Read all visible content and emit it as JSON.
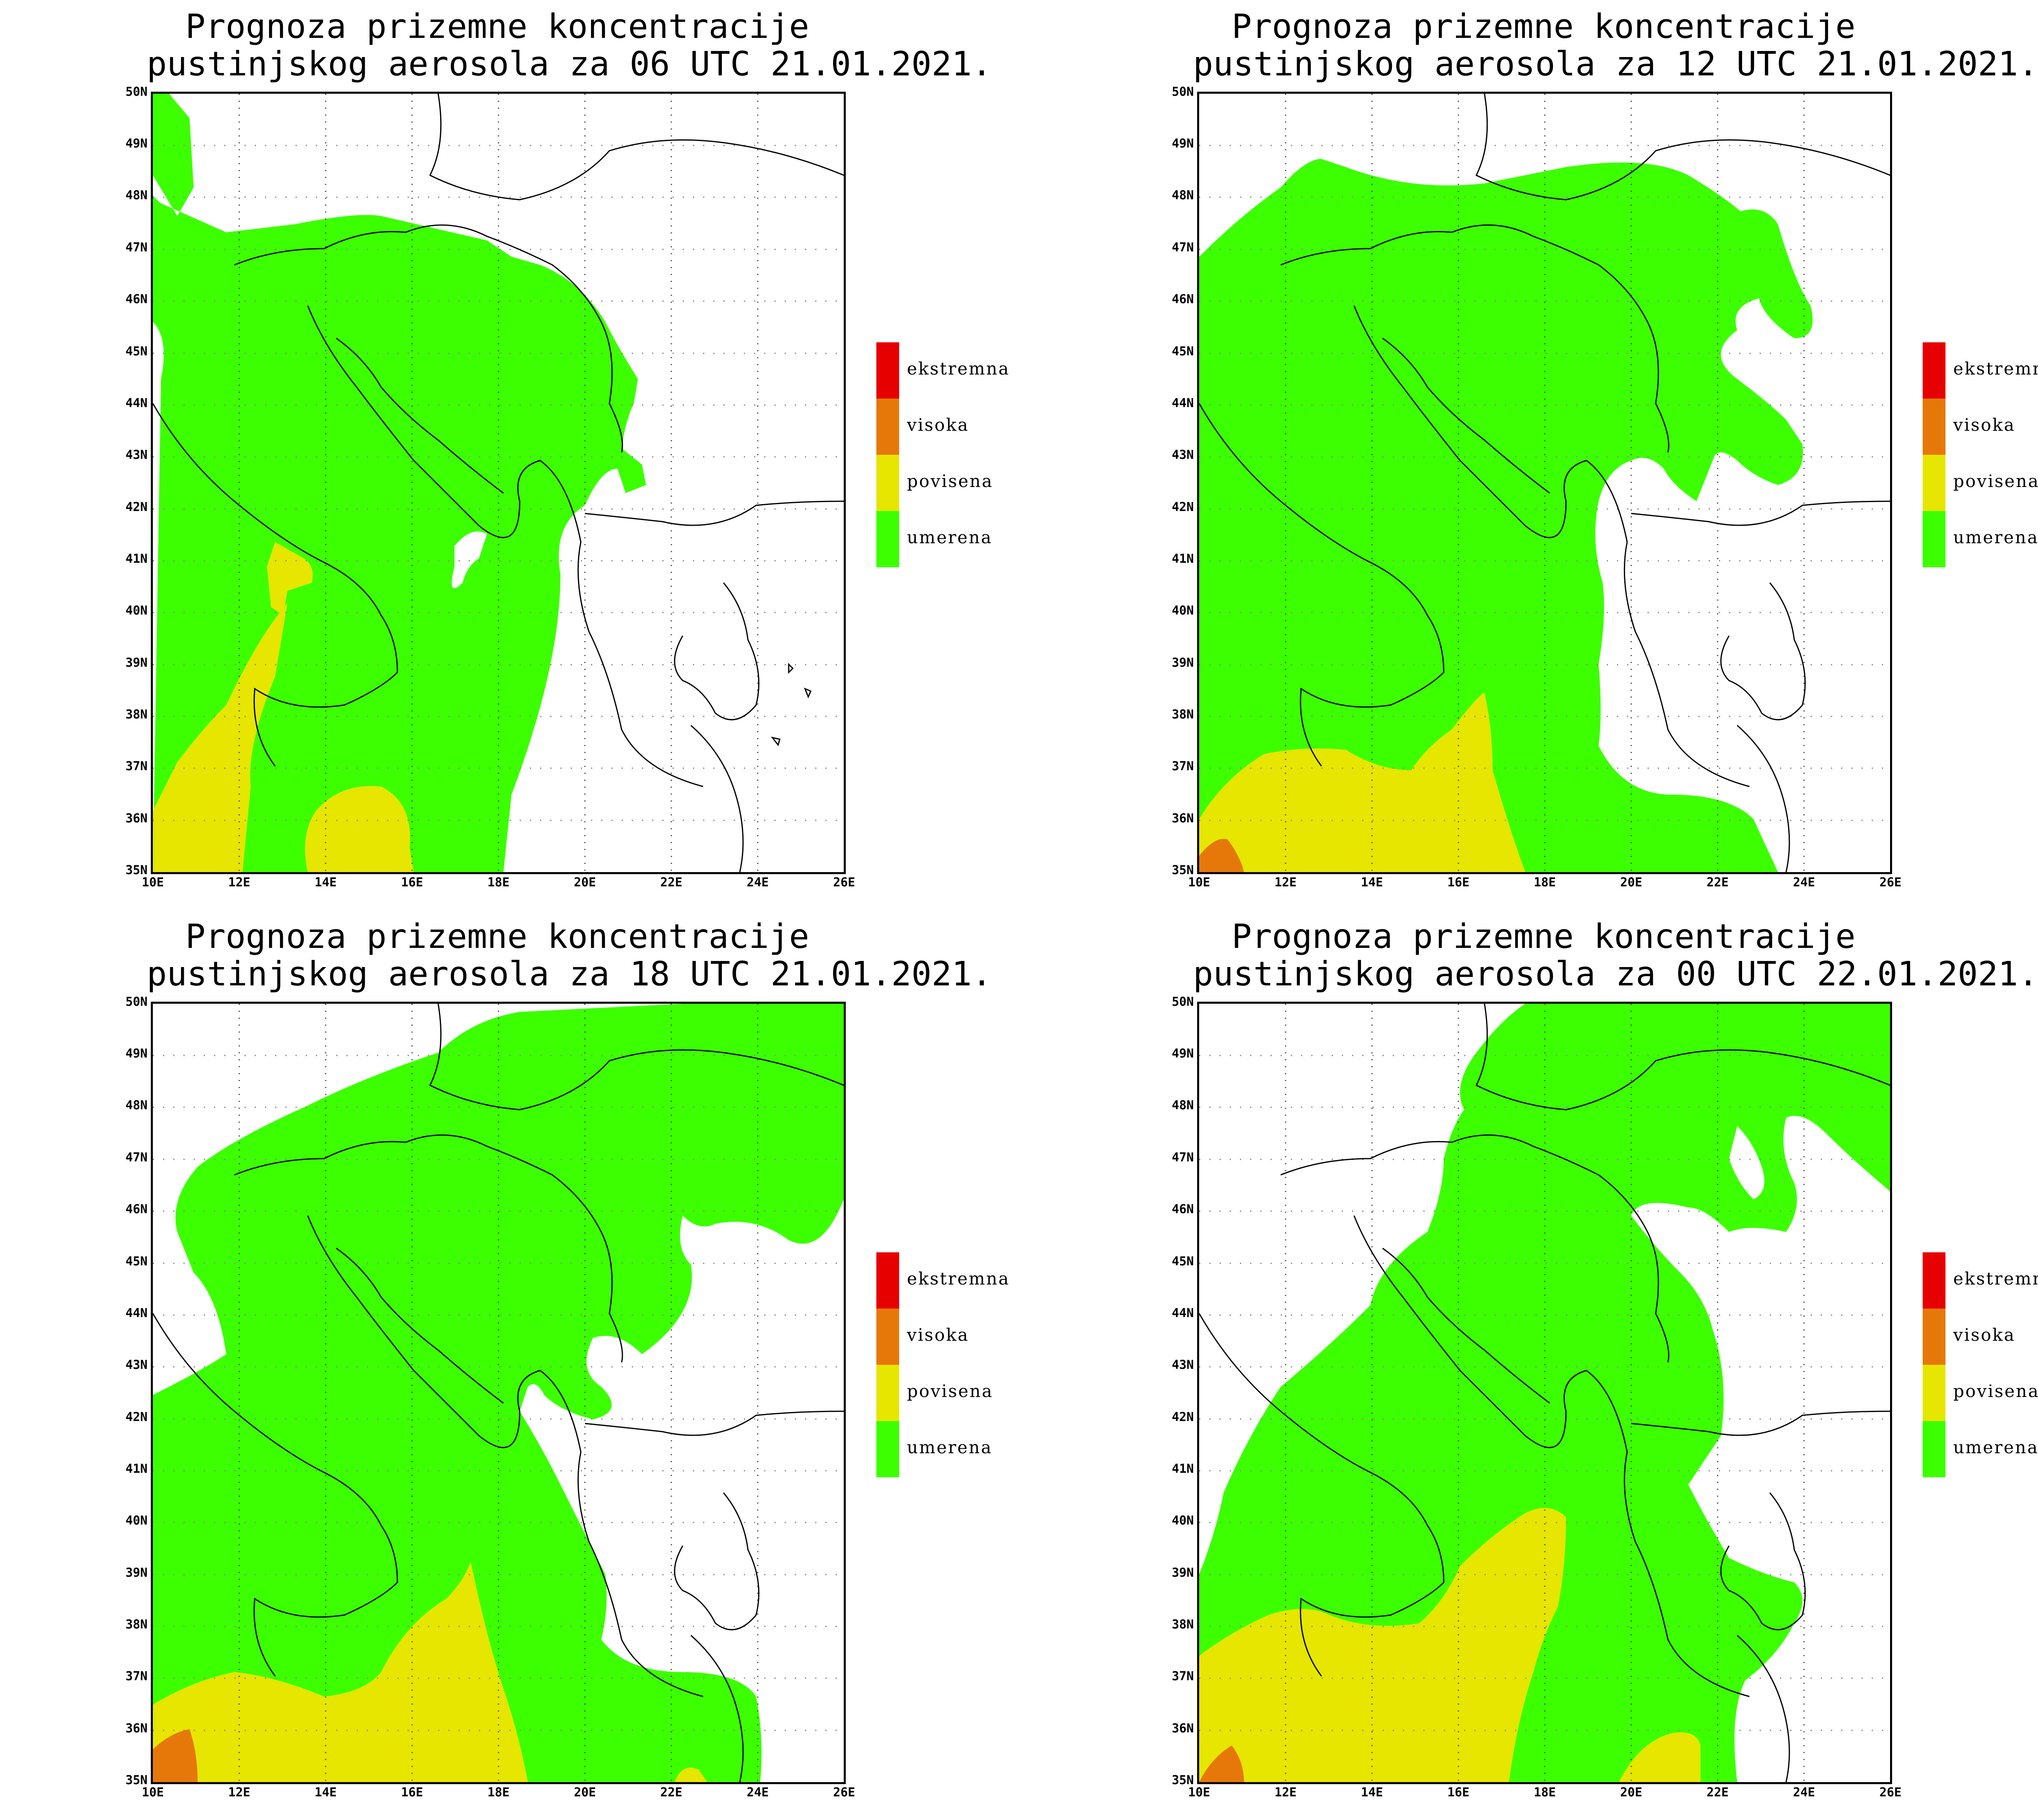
{
  "panels": [
    {
      "title_line1": "Prognoza prizemne koncentracije",
      "title_line2": "pustinjskog aerosola za 06 UTC 21.01.2021."
    },
    {
      "title_line1": "Prognoza prizemne koncentracije",
      "title_line2": "pustinjskog aerosola za 12 UTC 21.01.2021."
    },
    {
      "title_line1": "Prognoza prizemne koncentracije",
      "title_line2": "pustinjskog aerosola za 18 UTC 21.01.2021."
    },
    {
      "title_line1": "Prognoza prizemne koncentracije",
      "title_line2": "pustinjskog aerosola za 00 UTC 22.01.2021."
    }
  ],
  "axes": {
    "lat_labels": [
      "50N",
      "49N",
      "48N",
      "47N",
      "46N",
      "45N",
      "44N",
      "43N",
      "42N",
      "41N",
      "40N",
      "39N",
      "38N",
      "37N",
      "36N",
      "35N"
    ],
    "lon_labels": [
      "10E",
      "12E",
      "14E",
      "16E",
      "18E",
      "20E",
      "22E",
      "24E",
      "26E"
    ]
  },
  "legend": {
    "items": [
      {
        "label": "ekstremna",
        "color": "#e60000"
      },
      {
        "label": "visoka",
        "color": "#e6780a"
      },
      {
        "label": "povisena",
        "color": "#e6e600"
      },
      {
        "label": "umerena",
        "color": "#3cff00"
      }
    ]
  },
  "colors": {
    "umerena": "#3cff00",
    "povisena": "#e6e600",
    "visoka": "#e6780a",
    "ekstremna": "#e60000"
  }
}
